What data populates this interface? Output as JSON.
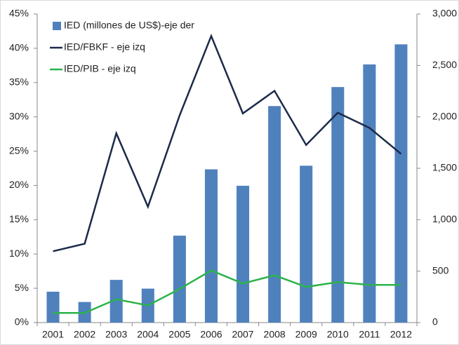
{
  "chart_data": {
    "type": "bar-line",
    "categories": [
      "2001",
      "2002",
      "2003",
      "2004",
      "2005",
      "2006",
      "2007",
      "2008",
      "2009",
      "2010",
      "2011",
      "2012"
    ],
    "series": [
      {
        "name": "IED (millones de US$)-eje der",
        "type": "bar",
        "axis": "y2",
        "color": "#4f81bd",
        "values": [
          300,
          200,
          415,
          330,
          845,
          1490,
          1330,
          2105,
          1525,
          2290,
          2510,
          2705
        ]
      },
      {
        "name": "IED/FBKF - eje izq",
        "type": "line",
        "color": "#1b2a4a",
        "values": [
          10.4,
          11.5,
          27.6,
          16.9,
          30.2,
          41.8,
          30.5,
          33.8,
          25.9,
          30.6,
          28.4,
          24.6
        ]
      },
      {
        "name": "IED/PIB - eje izq",
        "type": "line",
        "color": "#2db34a",
        "values": [
          1.4,
          1.4,
          3.4,
          2.5,
          4.9,
          7.6,
          5.7,
          6.9,
          5.2,
          5.9,
          5.5,
          5.5
        ]
      }
    ],
    "ylim": [
      0,
      45
    ],
    "yticks": [
      {
        "value": 0,
        "label": "0%"
      },
      {
        "value": 5,
        "label": "5%"
      },
      {
        "value": 10,
        "label": "10%"
      },
      {
        "value": 15,
        "label": "15%"
      },
      {
        "value": 20,
        "label": "20%"
      },
      {
        "value": 25,
        "label": "25%"
      },
      {
        "value": 30,
        "label": "30%"
      },
      {
        "value": 35,
        "label": "35%"
      },
      {
        "value": 40,
        "label": "40%"
      },
      {
        "value": 45,
        "label": "45%"
      }
    ],
    "y2lim": [
      0,
      3000
    ],
    "y2ticks": [
      0,
      500,
      {
        "value": 1000,
        "label": "1,000"
      },
      {
        "value": 1500,
        "label": "1,500"
      },
      {
        "value": 2000,
        "label": "2,000"
      },
      {
        "value": 2500,
        "label": "2,500"
      },
      {
        "value": 3000,
        "label": "3,000"
      }
    ],
    "legend": "upper-left"
  }
}
